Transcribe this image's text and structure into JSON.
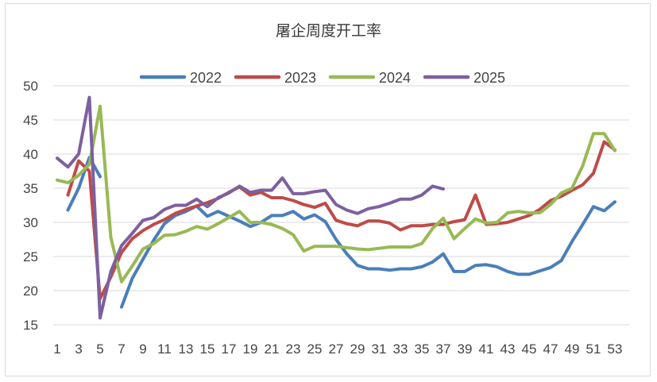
{
  "chart_data": {
    "type": "line",
    "title": "屠企周度开工率",
    "xlabel": "",
    "ylabel": "",
    "x": [
      1,
      2,
      3,
      4,
      5,
      6,
      7,
      8,
      9,
      10,
      11,
      12,
      13,
      14,
      15,
      16,
      17,
      18,
      19,
      20,
      21,
      22,
      23,
      24,
      25,
      26,
      27,
      28,
      29,
      30,
      31,
      32,
      33,
      34,
      35,
      36,
      37,
      38,
      39,
      40,
      41,
      42,
      43,
      44,
      45,
      46,
      47,
      48,
      49,
      50,
      51,
      52,
      53
    ],
    "x_tick_labels": [
      "1",
      "3",
      "5",
      "7",
      "9",
      "11",
      "13",
      "15",
      "17",
      "19",
      "21",
      "23",
      "25",
      "27",
      "29",
      "31",
      "33",
      "35",
      "37",
      "39",
      "41",
      "43",
      "45",
      "47",
      "49",
      "51",
      "53"
    ],
    "ylim": [
      15,
      50
    ],
    "y_ticks": [
      15,
      20,
      25,
      30,
      35,
      40,
      45,
      50
    ],
    "grid": "horizontal",
    "legend_position": "top",
    "series": [
      {
        "name": "2022",
        "color": "#4a7ebb",
        "values": [
          null,
          31.8,
          35.0,
          39.5,
          36.7,
          null,
          17.6,
          21.8,
          24.6,
          27.4,
          29.8,
          31.0,
          31.6,
          32.4,
          30.9,
          31.6,
          30.9,
          30.2,
          29.4,
          30.0,
          31.0,
          31.0,
          31.6,
          30.5,
          31.1,
          30.1,
          27.5,
          25.4,
          23.7,
          23.2,
          23.2,
          23.0,
          23.2,
          23.2,
          23.5,
          24.2,
          25.4,
          22.8,
          22.8,
          23.7,
          23.8,
          23.5,
          22.8,
          22.4,
          22.4,
          22.9,
          23.4,
          24.4,
          27.2,
          29.7,
          32.3,
          31.7,
          33.0
        ]
      },
      {
        "name": "2023",
        "color": "#be4b48",
        "values": [
          null,
          34.0,
          39.0,
          37.5,
          18.8,
          22.0,
          25.6,
          27.6,
          28.8,
          29.7,
          30.4,
          31.3,
          31.9,
          32.4,
          32.9,
          33.5,
          34.4,
          35.2,
          34.0,
          34.4,
          33.6,
          33.6,
          33.2,
          32.6,
          32.2,
          32.8,
          30.3,
          29.8,
          29.5,
          30.2,
          30.2,
          29.9,
          28.9,
          29.5,
          29.5,
          29.7,
          29.7,
          30.1,
          30.4,
          34.0,
          29.7,
          29.8,
          30.0,
          30.5,
          31.0,
          31.9,
          33.2,
          33.8,
          34.7,
          35.5,
          37.2,
          41.8,
          40.6
        ]
      },
      {
        "name": "2024",
        "color": "#98b954",
        "values": [
          36.2,
          35.8,
          36.9,
          38.5,
          47.0,
          27.8,
          21.3,
          23.6,
          26.1,
          26.9,
          28.1,
          28.2,
          28.7,
          29.4,
          29.0,
          29.8,
          30.7,
          31.6,
          30.0,
          30.0,
          29.7,
          29.1,
          28.2,
          25.8,
          26.5,
          26.5,
          26.5,
          26.3,
          26.1,
          26.0,
          26.2,
          26.4,
          26.4,
          26.4,
          26.9,
          29.1,
          30.6,
          27.6,
          29.1,
          30.5,
          29.9,
          30.0,
          31.4,
          31.6,
          31.4,
          31.4,
          32.6,
          34.3,
          35.0,
          38.3,
          43.0,
          43.0,
          40.5
        ]
      },
      {
        "name": "2025",
        "color": "#7d60a0",
        "values": [
          39.4,
          38.1,
          40.0,
          48.3,
          16.0,
          22.8,
          26.6,
          28.4,
          30.3,
          30.7,
          31.9,
          32.5,
          32.5,
          33.4,
          32.3,
          33.6,
          34.3,
          35.3,
          34.4,
          34.7,
          34.7,
          36.5,
          34.2,
          34.2,
          34.5,
          34.7,
          32.6,
          31.8,
          31.3,
          32.0,
          32.3,
          32.8,
          33.4,
          33.4,
          34.0,
          35.3,
          34.9,
          null,
          null,
          null,
          null,
          null,
          null,
          null,
          null,
          null,
          null,
          null,
          null,
          null,
          null,
          null,
          null
        ]
      }
    ]
  }
}
